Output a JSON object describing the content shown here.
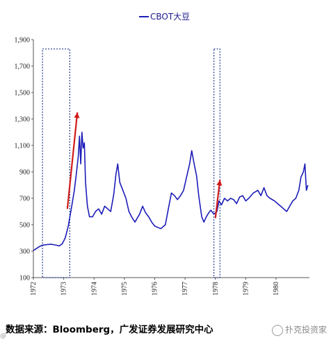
{
  "chart_data": {
    "type": "line",
    "legend": {
      "label": "CBOT大豆",
      "position": "top-center"
    },
    "y_ticks": [
      "100",
      "300",
      "500",
      "700",
      "900",
      "1,100",
      "1,300",
      "1,500",
      "1,700",
      "1,900"
    ],
    "ylim": [
      100,
      1900
    ],
    "x_ticks": [
      "1972",
      "1973",
      "1974",
      "1975",
      "1976",
      "1977",
      "1978",
      "1979",
      "1980"
    ],
    "xlim": [
      1972,
      1981.1
    ],
    "series": [
      {
        "name": "CBOT大豆",
        "color": "#1c1cb8",
        "points": [
          [
            1972.0,
            305
          ],
          [
            1972.1,
            320
          ],
          [
            1972.2,
            335
          ],
          [
            1972.3,
            345
          ],
          [
            1972.45,
            350
          ],
          [
            1972.6,
            352
          ],
          [
            1972.75,
            345
          ],
          [
            1972.85,
            340
          ],
          [
            1972.95,
            355
          ],
          [
            1973.05,
            400
          ],
          [
            1973.15,
            490
          ],
          [
            1973.25,
            620
          ],
          [
            1973.35,
            760
          ],
          [
            1973.42,
            890
          ],
          [
            1973.48,
            1020
          ],
          [
            1973.52,
            1170
          ],
          [
            1973.56,
            960
          ],
          [
            1973.6,
            1200
          ],
          [
            1973.64,
            1080
          ],
          [
            1973.68,
            1120
          ],
          [
            1973.72,
            820
          ],
          [
            1973.78,
            640
          ],
          [
            1973.85,
            560
          ],
          [
            1973.95,
            560
          ],
          [
            1974.05,
            600
          ],
          [
            1974.15,
            620
          ],
          [
            1974.25,
            580
          ],
          [
            1974.35,
            640
          ],
          [
            1974.45,
            620
          ],
          [
            1974.55,
            600
          ],
          [
            1974.65,
            730
          ],
          [
            1974.72,
            880
          ],
          [
            1974.78,
            960
          ],
          [
            1974.85,
            820
          ],
          [
            1974.95,
            760
          ],
          [
            1975.05,
            700
          ],
          [
            1975.15,
            600
          ],
          [
            1975.25,
            555
          ],
          [
            1975.35,
            520
          ],
          [
            1975.5,
            580
          ],
          [
            1975.6,
            640
          ],
          [
            1975.7,
            590
          ],
          [
            1975.8,
            560
          ],
          [
            1975.9,
            520
          ],
          [
            1976.0,
            490
          ],
          [
            1976.1,
            480
          ],
          [
            1976.2,
            470
          ],
          [
            1976.35,
            500
          ],
          [
            1976.45,
            620
          ],
          [
            1976.55,
            740
          ],
          [
            1976.65,
            720
          ],
          [
            1976.75,
            690
          ],
          [
            1976.85,
            720
          ],
          [
            1976.95,
            760
          ],
          [
            1977.05,
            860
          ],
          [
            1977.15,
            960
          ],
          [
            1977.22,
            1060
          ],
          [
            1977.3,
            960
          ],
          [
            1977.38,
            870
          ],
          [
            1977.45,
            720
          ],
          [
            1977.55,
            560
          ],
          [
            1977.62,
            520
          ],
          [
            1977.7,
            560
          ],
          [
            1977.78,
            590
          ],
          [
            1977.85,
            610
          ],
          [
            1977.95,
            580
          ],
          [
            1978.05,
            600
          ],
          [
            1978.12,
            680
          ],
          [
            1978.2,
            650
          ],
          [
            1978.3,
            700
          ],
          [
            1978.4,
            680
          ],
          [
            1978.5,
            700
          ],
          [
            1978.6,
            690
          ],
          [
            1978.7,
            660
          ],
          [
            1978.8,
            710
          ],
          [
            1978.9,
            720
          ],
          [
            1979.0,
            680
          ],
          [
            1979.1,
            700
          ],
          [
            1979.25,
            740
          ],
          [
            1979.4,
            760
          ],
          [
            1979.5,
            720
          ],
          [
            1979.6,
            780
          ],
          [
            1979.7,
            720
          ],
          [
            1979.8,
            700
          ],
          [
            1979.95,
            680
          ],
          [
            1980.05,
            660
          ],
          [
            1980.15,
            640
          ],
          [
            1980.25,
            620
          ],
          [
            1980.35,
            600
          ],
          [
            1980.45,
            640
          ],
          [
            1980.55,
            680
          ],
          [
            1980.65,
            700
          ],
          [
            1980.75,
            760
          ],
          [
            1980.82,
            860
          ],
          [
            1980.9,
            900
          ],
          [
            1980.95,
            960
          ],
          [
            1981.0,
            760
          ],
          [
            1981.05,
            800
          ]
        ]
      }
    ],
    "highlight_boxes": [
      {
        "x_range": [
          1972.3,
          1973.2
        ],
        "y_range": [
          100,
          1830
        ]
      },
      {
        "x_range": [
          1977.95,
          1978.15
        ],
        "y_range": [
          100,
          1830
        ]
      }
    ],
    "arrows": [
      {
        "from": [
          1973.12,
          620
        ],
        "to": [
          1973.45,
          1350
        ]
      },
      {
        "from": [
          1978.0,
          550
        ],
        "to": [
          1978.15,
          840
        ]
      }
    ],
    "grid": false
  },
  "footer": {
    "source": "数据来源：Bloomberg，广发证券发展研究中心",
    "watermark": "扑克投资家"
  },
  "colors": {
    "line": "#1c1cb8",
    "arrow": "#d11a1a",
    "box": "#1f3a8a"
  }
}
